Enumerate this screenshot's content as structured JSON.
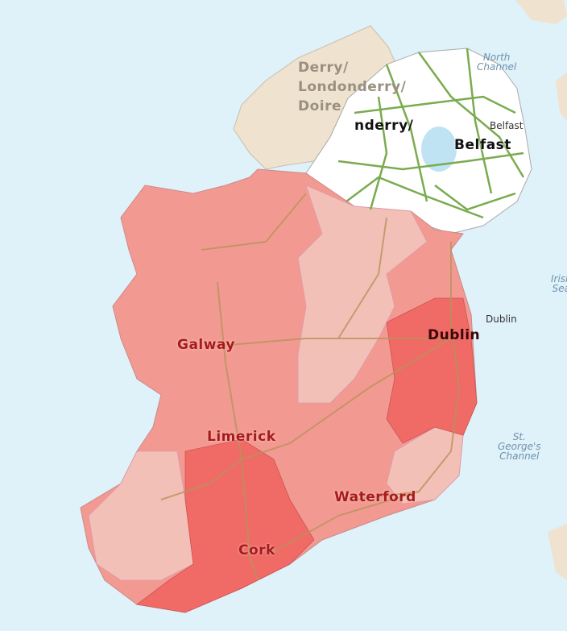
{
  "map": {
    "colors": {
      "sea": "#dff1f9",
      "other_land": "#efe3cf",
      "northern_ireland": "#ffffff",
      "road_ni": "#7aab4f",
      "road_roi": "#b9935b",
      "choropleth_light": "#f3c0b8",
      "choropleth_mid": "#f29a92",
      "choropleth_dark": "#f06a66",
      "label_red": "#a51c1c"
    },
    "labels": {
      "derry_line1": "Derry/",
      "derry_line2": "Londonderry/",
      "derry_line3": "Doire",
      "derry_overlay": "nderry/",
      "belfast": "Belfast",
      "belfast_small": "Belfast",
      "dublin": "Dublin",
      "dublin_small": "Dublin",
      "galway": "Galway",
      "limerick": "Limerick",
      "cork": "Cork",
      "waterford": "Waterford"
    },
    "seas": {
      "north_channel_1": "North",
      "north_channel_2": "Channel",
      "irish_sea_1": "Irish",
      "irish_sea_2": "Sea",
      "st_georges_1": "St.",
      "st_georges_2": "George's",
      "st_georges_3": "Channel"
    }
  }
}
